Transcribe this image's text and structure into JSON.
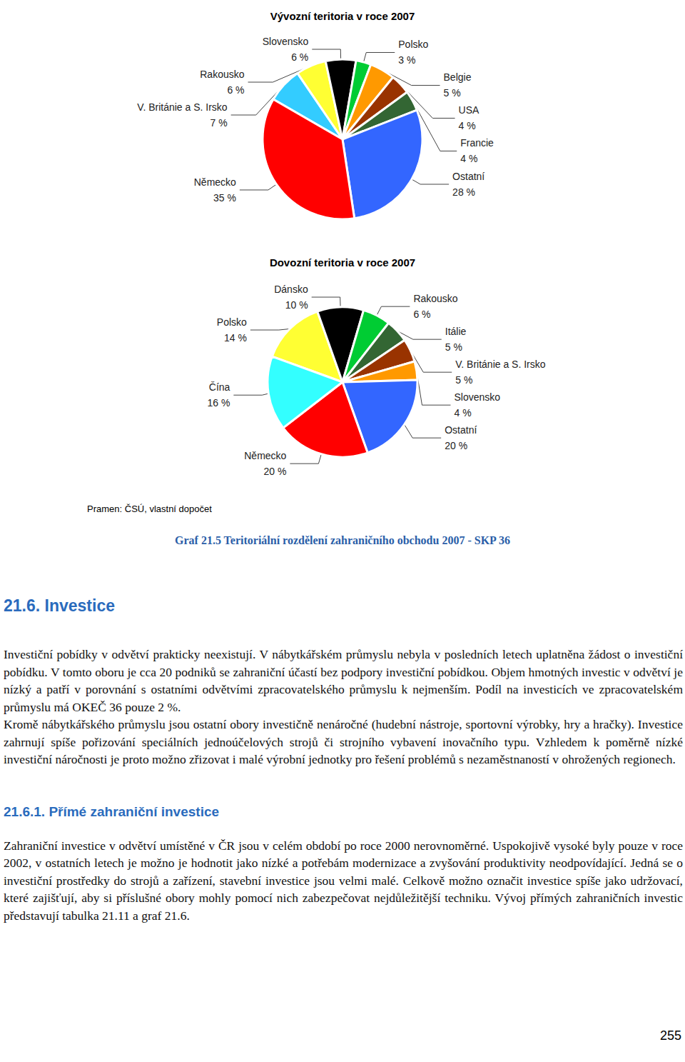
{
  "chart_data": [
    {
      "type": "pie",
      "title": "Vývozní teritoria v roce 2007",
      "categories": [
        "V. Británie a S. Irsko",
        "Rakousko",
        "Slovensko",
        "Polsko",
        "Belgie",
        "USA",
        "Francie",
        "Ostatní",
        "Německo"
      ],
      "values": [
        7,
        6,
        6,
        3,
        5,
        4,
        4,
        28,
        35
      ],
      "value_labels": [
        "7 %",
        "6 %",
        "6 %",
        "3 %",
        "5 %",
        "4 %",
        "4 %",
        "28 %",
        "35 %"
      ],
      "colors": [
        "#33ccff",
        "#ffff33",
        "#000000",
        "#00cc33",
        "#ff9900",
        "#993300",
        "#336633",
        "#3366ff",
        "#ff0000"
      ],
      "data_labels": true
    },
    {
      "type": "pie",
      "title": "Dovozní teritoria v roce 2007",
      "categories": [
        "Polsko",
        "Dánsko",
        "Rakousko",
        "Itálie",
        "V. Británie a S. Irsko",
        "Slovensko",
        "Ostatní",
        "Německo",
        "Čína"
      ],
      "values": [
        14,
        10,
        6,
        5,
        5,
        4,
        20,
        20,
        16
      ],
      "value_labels": [
        "14 %",
        "10 %",
        "6 %",
        "5 %",
        "5 %",
        "4 %",
        "20 %",
        "20 %",
        "16 %"
      ],
      "colors": [
        "#ffff33",
        "#000000",
        "#00cc33",
        "#336633",
        "#993300",
        "#ff9900",
        "#3366ff",
        "#ff0000",
        "#33ffff"
      ],
      "data_labels": true
    }
  ],
  "source": "Pramen: ČSÚ, vlastní dopočet",
  "caption": "Graf 21.5 Teritoriální rozdělení zahraničního obchodu 2007 - SKP 36",
  "sections": [
    {
      "heading": "21.6. Investice",
      "paragraphs": [
        "Investiční pobídky v odvětví prakticky neexistují. V nábytkářském průmyslu nebyla v posledních letech uplatněna žádost o investiční pobídku. V tomto oboru je cca 20 podniků se zahraniční účastí bez podpory investiční pobídkou. Objem hmotných investic v odvětví je nízký a patří v porovnání s ostatními odvětvími zpracovatelského průmyslu k nejmenším. Podíl na investicích ve zpracovatelském průmyslu má OKEČ 36 pouze 2 %.",
        "Kromě nábytkářského průmyslu jsou ostatní obory investičně nenáročné (hudební nástroje, sportovní výrobky, hry a hračky). Investice zahrnují spíše pořizování speciálních jednoúčelových strojů či strojního vybavení inovačního typu. Vzhledem k poměrně nízké investiční náročnosti je proto možno zřizovat i malé výrobní jednotky pro řešení problémů s nezaměstnaností v ohrožených regionech."
      ]
    },
    {
      "heading": "21.6.1. Přímé zahraniční investice",
      "paragraphs": [
        "Zahraniční investice v odvětví umístěné v ČR jsou v celém období po roce 2000 nerovnoměrné. Uspokojivě vysoké byly pouze v roce 2002, v ostatních letech je možno je hodnotit jako nízké a potřebám modernizace a zvyšování produktivity neodpovídající. Jedná se o investiční prostředky do strojů a zařízení, stavební investice jsou velmi malé. Celkově možno označit investice spíše jako udržovací, které zajišťují, aby si příslušné obory mohly pomocí nich zabezpečovat nejdůležitější techniku. Vývoj přímých zahraničních investic představují tabulka 21.11 a graf 21.6."
      ]
    }
  ],
  "page_number": "255"
}
